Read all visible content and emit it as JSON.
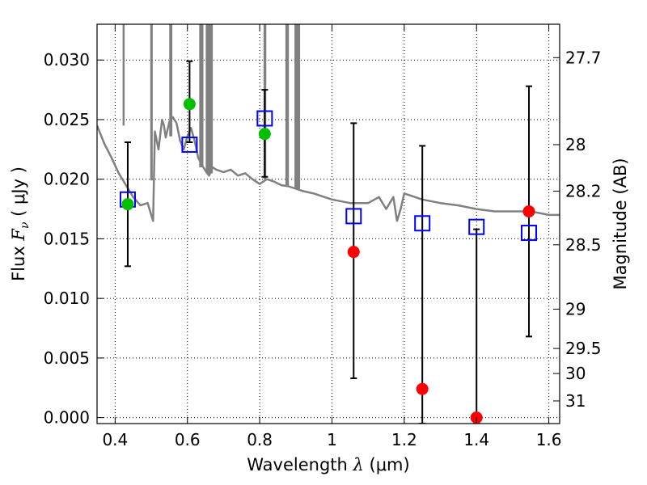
{
  "chart_data": {
    "type": "scatter",
    "xlabel": {
      "pre": "Wavelength ",
      "sym": "λ",
      "post": " (μm)"
    },
    "ylabel": {
      "pre": "Flux ",
      "sym": "F",
      "sub": "ν",
      "post": " ( μJy )"
    },
    "y2label": "Magnitude (AB)",
    "xlim": [
      0.35,
      1.63
    ],
    "ylim": [
      -0.0005,
      0.033
    ],
    "grid": true,
    "x_ticks": [
      0.4,
      0.6,
      0.8,
      1.0,
      1.2,
      1.4,
      1.6
    ],
    "x_tick_labels": [
      "0.4",
      "0.6",
      "0.8",
      "1",
      "1.2",
      "1.4",
      "1.6"
    ],
    "y_ticks": [
      0.0,
      0.005,
      0.01,
      0.015,
      0.02,
      0.025,
      0.03
    ],
    "y_tick_labels": [
      "0.000",
      "0.005",
      "0.010",
      "0.015",
      "0.020",
      "0.025",
      "0.030"
    ],
    "y2_ticks": [
      {
        "label": "27.7",
        "flux": 0.0302
      },
      {
        "label": "28",
        "flux": 0.0229
      },
      {
        "label": "28.2",
        "flux": 0.019
      },
      {
        "label": "28.5",
        "flux": 0.0145
      },
      {
        "label": "29",
        "flux": 0.0091
      },
      {
        "label": "29.5",
        "flux": 0.0058
      },
      {
        "label": "30",
        "flux": 0.0037
      },
      {
        "label": "31",
        "flux": 0.0014
      }
    ],
    "colors": {
      "model": "#808080",
      "model_points": "#0000ff",
      "detections": "#00c000",
      "upper_limits": "#ff0000",
      "errorbars": "#000000",
      "grid": "#000000"
    },
    "series": [
      {
        "role": "model_spectrum",
        "x": [
          0.35,
          0.37,
          0.39,
          0.41,
          0.43,
          0.45,
          0.47,
          0.49,
          0.5,
          0.505,
          0.51,
          0.52,
          0.53,
          0.535,
          0.54,
          0.55,
          0.56,
          0.57,
          0.58,
          0.59,
          0.6,
          0.61,
          0.62,
          0.63,
          0.64,
          0.65,
          0.66,
          0.67,
          0.68,
          0.7,
          0.72,
          0.74,
          0.76,
          0.78,
          0.8,
          0.82,
          0.84,
          0.86,
          0.88,
          0.9,
          0.92,
          0.95,
          1.0,
          1.05,
          1.1,
          1.13,
          1.15,
          1.17,
          1.18,
          1.19,
          1.2,
          1.22,
          1.25,
          1.3,
          1.35,
          1.4,
          1.45,
          1.5,
          1.55,
          1.6,
          1.63
        ],
        "y": [
          0.0245,
          0.023,
          0.0218,
          0.0205,
          0.0195,
          0.0185,
          0.0178,
          0.018,
          0.017,
          0.0165,
          0.024,
          0.0225,
          0.025,
          0.0245,
          0.0235,
          0.0248,
          0.0252,
          0.0247,
          0.0232,
          0.0225,
          0.0236,
          0.0243,
          0.0232,
          0.0218,
          0.0212,
          0.0207,
          0.0203,
          0.021,
          0.0208,
          0.0206,
          0.0208,
          0.0203,
          0.0205,
          0.02,
          0.0196,
          0.02,
          0.0198,
          0.0195,
          0.0194,
          0.0192,
          0.019,
          0.0188,
          0.0183,
          0.018,
          0.018,
          0.0185,
          0.0175,
          0.0185,
          0.0165,
          0.0175,
          0.0188,
          0.0186,
          0.0183,
          0.018,
          0.0178,
          0.0175,
          0.0173,
          0.0173,
          0.0173,
          0.017,
          0.017
        ]
      },
      {
        "role": "model_emission_spikes",
        "x": [
          0.4235,
          0.5,
          0.5013,
          0.5525,
          0.5555,
          0.6355,
          0.6375,
          0.6415,
          0.6535,
          0.6545,
          0.657,
          0.66,
          0.661,
          0.6625,
          0.6635,
          0.665,
          0.6675,
          0.8135,
          0.8155,
          0.874,
          0.8755,
          0.878,
          0.899,
          0.901,
          0.904,
          0.907,
          0.909
        ],
        "y": [
          0.0245,
          0.0199,
          0.0199,
          0.0236,
          0.0236,
          0.021,
          0.021,
          0.021,
          0.0206,
          0.0206,
          0.0205,
          0.0205,
          0.0205,
          0.0205,
          0.0205,
          0.0205,
          0.0205,
          0.02,
          0.02,
          0.0194,
          0.0194,
          0.0194,
          0.0192,
          0.0192,
          0.0192,
          0.0192,
          0.0192
        ],
        "peak": 0.033
      },
      {
        "role": "model_photometry",
        "x": [
          0.435,
          0.606,
          0.814,
          1.06,
          1.25,
          1.4,
          1.545
        ],
        "y": [
          0.0183,
          0.0229,
          0.0251,
          0.0169,
          0.0163,
          0.016,
          0.0155
        ]
      },
      {
        "role": "observed_detections",
        "x": [
          0.435,
          0.606,
          0.814
        ],
        "y": [
          0.0179,
          0.0263,
          0.0238
        ],
        "yerr_low": [
          0.0127,
          0.0231,
          0.0202
        ],
        "yerr_high": [
          0.0231,
          0.0299,
          0.0275
        ]
      },
      {
        "role": "observed_nondetections",
        "x": [
          1.06,
          1.25,
          1.4,
          1.545
        ],
        "y": [
          0.0139,
          0.0024,
          0.0,
          0.0173
        ],
        "yerr_low": [
          0.0033,
          -0.0005,
          -0.0005,
          0.0068
        ],
        "yerr_high": [
          0.0247,
          0.0228,
          0.0158,
          0.0278
        ]
      }
    ]
  }
}
